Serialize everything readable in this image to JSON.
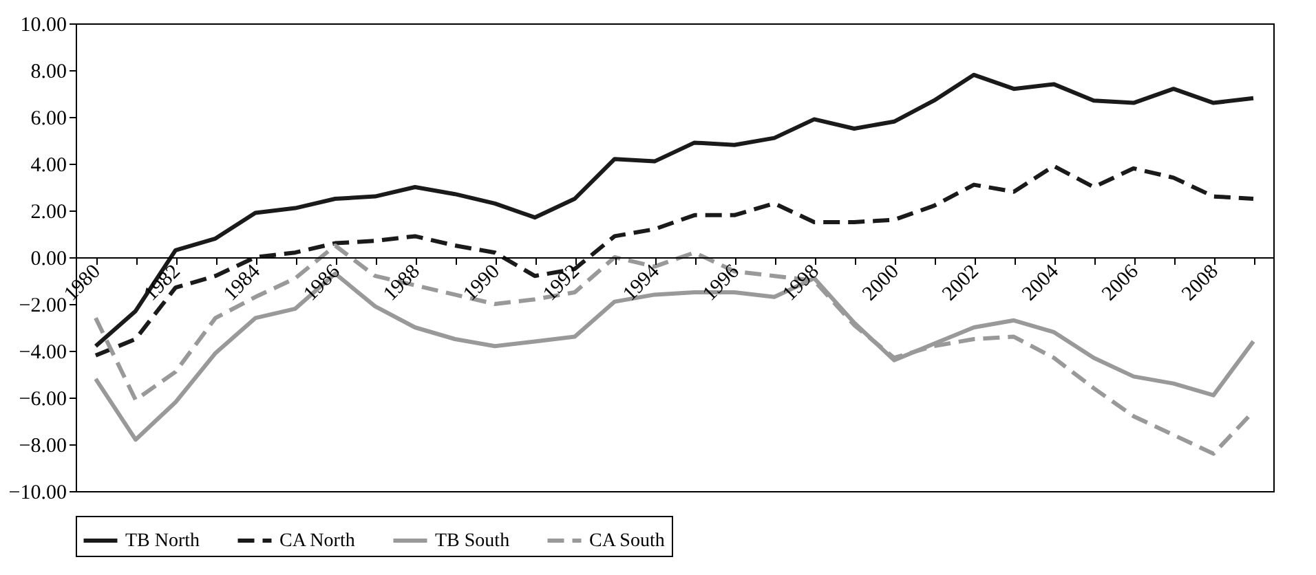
{
  "chart_data": {
    "type": "line",
    "categories": [
      "1980",
      null,
      "1982",
      null,
      "1984",
      null,
      "1986",
      null,
      "1988",
      null,
      "1990",
      null,
      "1992",
      null,
      "1994",
      null,
      "1996",
      null,
      "1998",
      null,
      "2000",
      null,
      "2002",
      null,
      "2004",
      null,
      "2006",
      null,
      "2008",
      null
    ],
    "series": [
      {
        "name": "TB North",
        "color": "#1a1a1a",
        "line_style": "solid",
        "values": [
          -3.8,
          -2.3,
          0.3,
          0.8,
          1.9,
          2.1,
          2.5,
          2.6,
          3.0,
          2.7,
          2.3,
          1.7,
          2.5,
          4.2,
          4.1,
          4.9,
          4.8,
          5.1,
          5.9,
          5.5,
          5.8,
          6.7,
          7.8,
          7.2,
          7.4,
          6.7,
          6.6,
          7.2,
          6.6,
          6.8
        ]
      },
      {
        "name": "CA North",
        "color": "#1a1a1a",
        "line_style": "dashed",
        "values": [
          -4.2,
          -3.5,
          -1.3,
          -0.8,
          0.0,
          0.2,
          0.6,
          0.7,
          0.9,
          0.5,
          0.2,
          -0.8,
          -0.5,
          0.9,
          1.2,
          1.8,
          1.8,
          2.3,
          1.5,
          1.5,
          1.6,
          2.2,
          3.1,
          2.8,
          3.9,
          3.0,
          3.8,
          3.4,
          2.6,
          2.5
        ]
      },
      {
        "name": "TB South",
        "color": "#999999",
        "line_style": "solid",
        "values": [
          -5.2,
          -7.8,
          -6.2,
          -4.1,
          -2.6,
          -2.2,
          -0.7,
          -2.1,
          -3.0,
          -3.5,
          -3.8,
          -3.6,
          -3.4,
          -1.9,
          -1.6,
          -1.5,
          -1.5,
          -1.7,
          -0.9,
          -2.8,
          -4.4,
          -3.7,
          -3.0,
          -2.7,
          -3.2,
          -4.3,
          -5.1,
          -5.4,
          -5.9,
          -3.6
        ]
      },
      {
        "name": "CA South",
        "color": "#999999",
        "line_style": "dashed",
        "values": [
          -2.6,
          -6.1,
          -4.9,
          -2.6,
          -1.7,
          -0.9,
          0.5,
          -0.8,
          -1.2,
          -1.6,
          -2.0,
          -1.8,
          -1.5,
          0.0,
          -0.4,
          0.2,
          -0.6,
          -0.8,
          -1.0,
          -2.9,
          -4.3,
          -3.8,
          -3.5,
          -3.4,
          -4.3,
          -5.6,
          -6.8,
          -7.6,
          -8.4,
          -6.6
        ]
      }
    ],
    "ylim": [
      -10,
      10
    ],
    "yticks": [
      {
        "value": -10,
        "label": "−10.00"
      },
      {
        "value": -8,
        "label": "−8.00"
      },
      {
        "value": -6,
        "label": "−6.00"
      },
      {
        "value": -4,
        "label": "−4.00"
      },
      {
        "value": -2,
        "label": "−2.00"
      },
      {
        "value": 0,
        "label": "0.00"
      },
      {
        "value": 2,
        "label": "2.00"
      },
      {
        "value": 4,
        "label": "4.00"
      },
      {
        "value": 6,
        "label": "6.00"
      },
      {
        "value": 8,
        "label": "8.00"
      },
      {
        "value": 10,
        "label": "10.00"
      }
    ],
    "grid": false,
    "legend": "bottom",
    "marker": "none"
  }
}
